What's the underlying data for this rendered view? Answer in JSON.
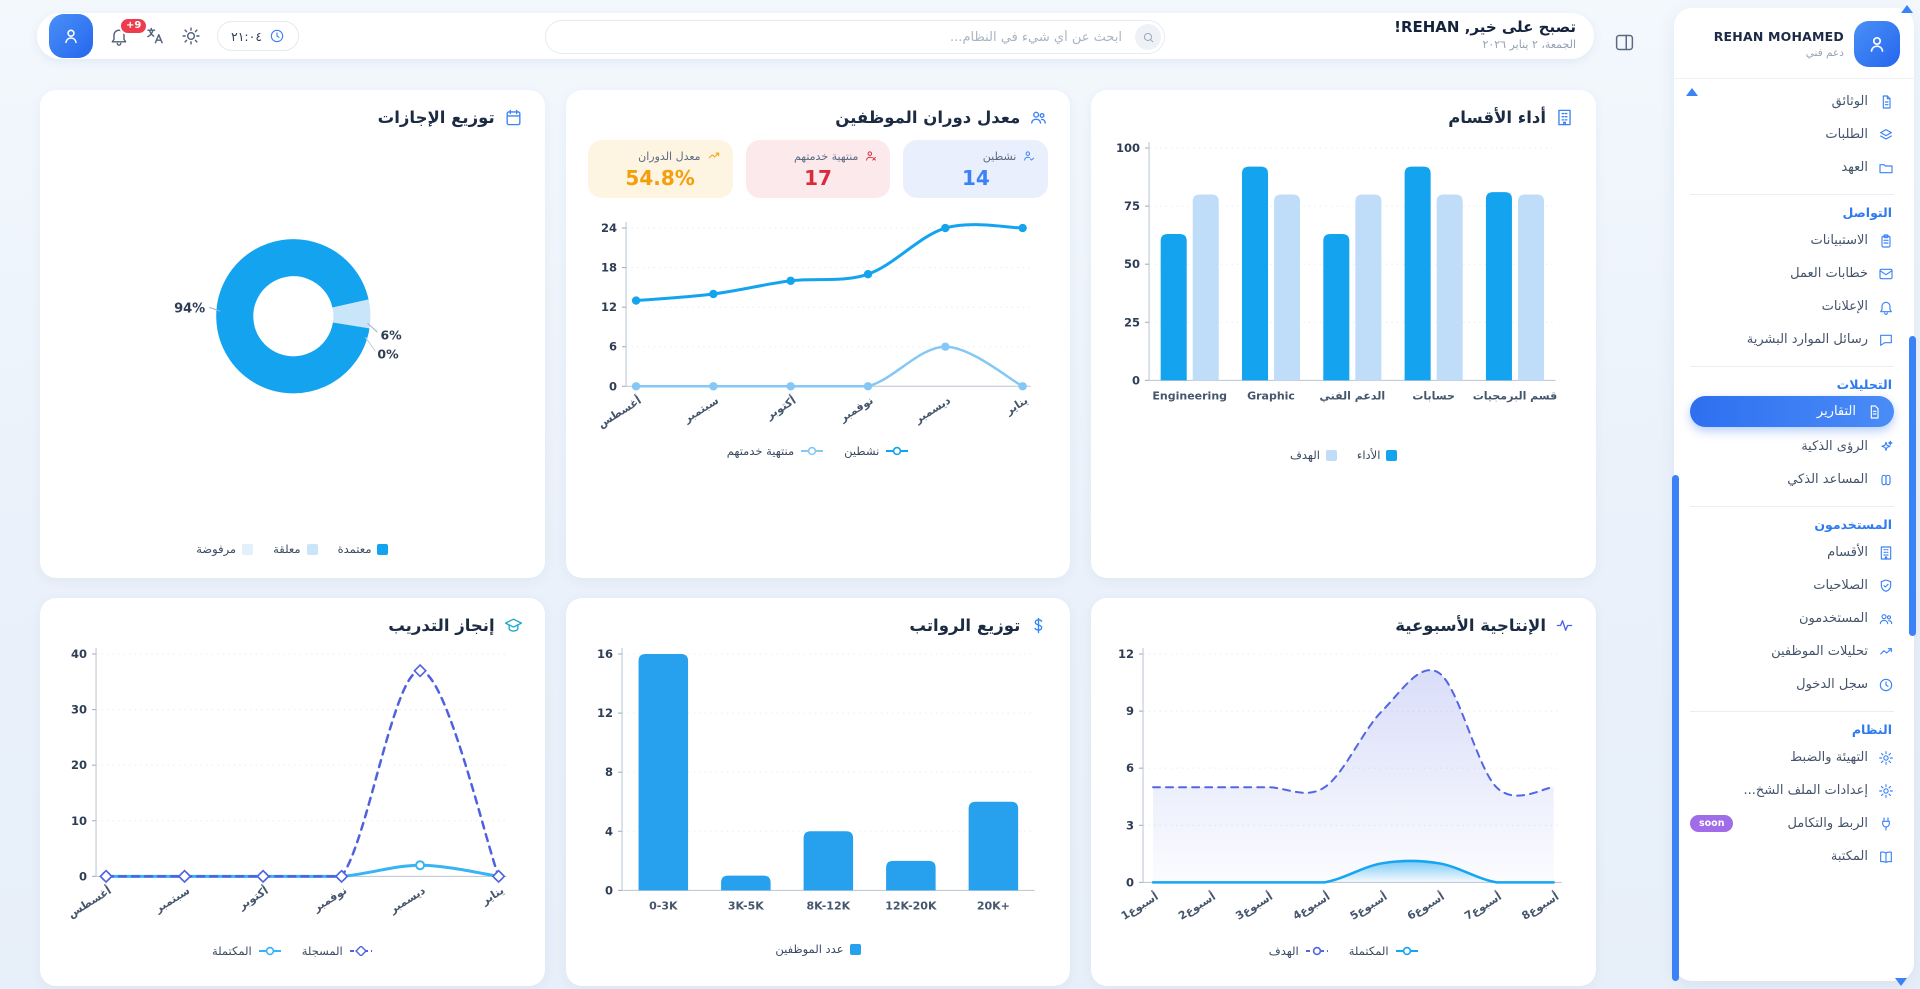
{
  "topbar": {
    "greeting_title": "تصبح على خير, REHAN!",
    "greeting_date": "الجمعة، ٢ يناير ٢٠٢٦",
    "search_placeholder": "ابحث عن أي شيء في النظام...",
    "time": "٢١:٠٤",
    "notifications_badge": "+9"
  },
  "sidebar": {
    "user": {
      "name": "REHAN MOHAMED",
      "role": "دعم فني"
    },
    "sections": [
      {
        "header": "",
        "items": [
          {
            "icon": "document",
            "label": "الوثائق"
          },
          {
            "icon": "layers",
            "label": "الطلبات"
          },
          {
            "icon": "folder",
            "label": "العهد"
          }
        ]
      },
      {
        "header": "التواصل",
        "items": [
          {
            "icon": "clipboard",
            "label": "الاستبيانات"
          },
          {
            "icon": "mail",
            "label": "خطابات العمل"
          },
          {
            "icon": "bell",
            "label": "الإعلانات"
          },
          {
            "icon": "chat",
            "label": "رسائل الموارد البشرية"
          }
        ]
      },
      {
        "header": "التحليلات",
        "items": [
          {
            "icon": "report",
            "label": "التقارير",
            "active": true
          },
          {
            "icon": "sparkles",
            "label": "الرؤى الذكية"
          },
          {
            "icon": "brain",
            "label": "المساعد الذكي"
          }
        ]
      },
      {
        "header": "المستخدمون",
        "items": [
          {
            "icon": "building",
            "label": "الأقسام"
          },
          {
            "icon": "shield",
            "label": "الصلاحيات"
          },
          {
            "icon": "users",
            "label": "المستخدمون"
          },
          {
            "icon": "trend",
            "label": "تحليلات الموظفين"
          },
          {
            "icon": "clock",
            "label": "سجل الدخول"
          }
        ]
      },
      {
        "header": "النظام",
        "items": [
          {
            "icon": "gear",
            "label": "التهيئة والضبط"
          },
          {
            "icon": "gear",
            "label": "إعدادات الملف الشخ..."
          },
          {
            "icon": "plug",
            "label": "الربط والتكامل",
            "badge": "soon"
          },
          {
            "icon": "book",
            "label": "المكتبة"
          }
        ]
      }
    ]
  },
  "chart_data": [
    {
      "id": "departments",
      "type": "bar",
      "title": "أداء الأقسام",
      "icon": "building",
      "icon_color": "#3b82f6",
      "categories": [
        "Engineering",
        "Graphic",
        "الدعم الفني",
        "حسابات",
        "قسم البرمجيات"
      ],
      "series": [
        {
          "name": "الأداء",
          "color": "#14a4ef",
          "values": [
            63,
            92,
            63,
            92,
            81
          ]
        },
        {
          "name": "الهدف",
          "color": "#bfddf8",
          "values": [
            80,
            80,
            80,
            80,
            80
          ]
        }
      ],
      "yticks": [
        0,
        25,
        50,
        75,
        100
      ],
      "ylim": [
        0,
        100
      ],
      "grid": true,
      "legend_position": "bottom"
    },
    {
      "id": "turnover",
      "type": "line",
      "title": "معدل دوران الموظفين",
      "icon": "users",
      "icon_color": "#3b82f6",
      "stats": [
        {
          "label": "نشطين",
          "value": "14",
          "color": "#3b82f6",
          "bg": "#e9effc",
          "icon": "person-check"
        },
        {
          "label": "منتهية خدمتهم",
          "value": "17",
          "color": "#d92b3a",
          "bg": "#fbe9ec",
          "icon": "person-x"
        },
        {
          "label": "معدل الدوران",
          "value": "54.8%",
          "color": "#f59e0b",
          "bg": "#fdf4e1",
          "icon": "trend"
        }
      ],
      "categories": [
        "أغسطس",
        "سبتمبر",
        "أكتوبر",
        "نوفمبر",
        "ديسمبر",
        "يناير"
      ],
      "series": [
        {
          "name": "نشطين",
          "color": "#14a4ef",
          "width": 3,
          "marker": "circle",
          "values": [
            13,
            14,
            16,
            17,
            24,
            24
          ]
        },
        {
          "name": "منتهية خدمتهم",
          "color": "#85c8f6",
          "width": 2.5,
          "marker": "circle",
          "values": [
            0,
            0,
            0,
            0,
            6,
            0
          ]
        }
      ],
      "yticks": [
        0,
        6,
        12,
        18,
        24
      ],
      "ylim": [
        0,
        24
      ],
      "rotate_labels": true,
      "legend_position": "bottom"
    },
    {
      "id": "leaves",
      "type": "pie",
      "title": "توزيع الإجازات",
      "icon": "calendar",
      "icon_color": "#3b82f6",
      "slices": [
        {
          "label": "معتمدة",
          "value": 94,
          "pct_label": "94%",
          "color": "#14a4ef"
        },
        {
          "label": "معلقة",
          "value": 6,
          "pct_label": "6%",
          "color": "#c9e5fa"
        },
        {
          "label": "مرفوضة",
          "value": 0,
          "pct_label": "0%",
          "color": "#e2f0fc"
        }
      ],
      "legend_position": "bottom"
    },
    {
      "id": "productivity",
      "type": "area",
      "title": "الإنتاجية الأسبوعية",
      "icon": "pulse",
      "icon_color": "#4a63e8",
      "categories": [
        "أسبوع1",
        "أسبوع2",
        "أسبوع3",
        "أسبوع4",
        "أسبوع5",
        "أسبوع6",
        "أسبوع7",
        "أسبوع8"
      ],
      "series": [
        {
          "name": "المكتملة",
          "color": "#16a5f1",
          "width": 2.5,
          "marker": "none",
          "area": true,
          "area_opacity": 0.55,
          "values": [
            0,
            0,
            0,
            0,
            1,
            1,
            0,
            0
          ]
        },
        {
          "name": "الهدف",
          "color": "#5366e3",
          "width": 2,
          "dashed": true,
          "marker": "none",
          "area": true,
          "area_opacity": 0.22,
          "values": [
            5,
            5,
            5,
            5,
            9,
            11,
            5,
            5
          ]
        }
      ],
      "yticks": [
        0,
        3,
        6,
        9,
        12
      ],
      "ylim": [
        0,
        12
      ],
      "rotate_labels": true,
      "legend_position": "bottom"
    },
    {
      "id": "salary",
      "type": "bar",
      "title": "توزيع الرواتب",
      "icon": "dollar",
      "icon_color": "#2f86f5",
      "categories": [
        "0-3K",
        "3K-5K",
        "8K-12K",
        "12K-20K",
        "20K+"
      ],
      "series": [
        {
          "name": "عدد الموظفين",
          "color": "#27a0ee",
          "values": [
            16,
            1,
            4,
            2,
            6
          ]
        }
      ],
      "yticks": [
        0,
        4,
        8,
        12,
        16
      ],
      "ylim": [
        0,
        16
      ],
      "legend_position": "bottom"
    },
    {
      "id": "training",
      "type": "line",
      "title": "إنجاز التدريب",
      "icon": "grad-cap",
      "icon_color": "#1ba8c9",
      "categories": [
        "أغسطس",
        "سبتمبر",
        "أكتوبر",
        "نوفمبر",
        "ديسمبر",
        "يناير"
      ],
      "series": [
        {
          "name": "المسجلة",
          "color": "#4f61e1",
          "width": 2.5,
          "dashed": true,
          "marker": "diamond",
          "values": [
            0,
            0,
            0,
            0,
            37,
            0
          ]
        },
        {
          "name": "المكتملة",
          "color": "#38b3f3",
          "width": 3,
          "marker": "circle-open",
          "values": [
            0,
            0,
            0,
            0,
            2,
            0
          ]
        }
      ],
      "yticks": [
        0,
        10,
        20,
        30,
        40
      ],
      "ylim": [
        0,
        40
      ],
      "rotate_labels": true,
      "legend_position": "bottom"
    }
  ]
}
